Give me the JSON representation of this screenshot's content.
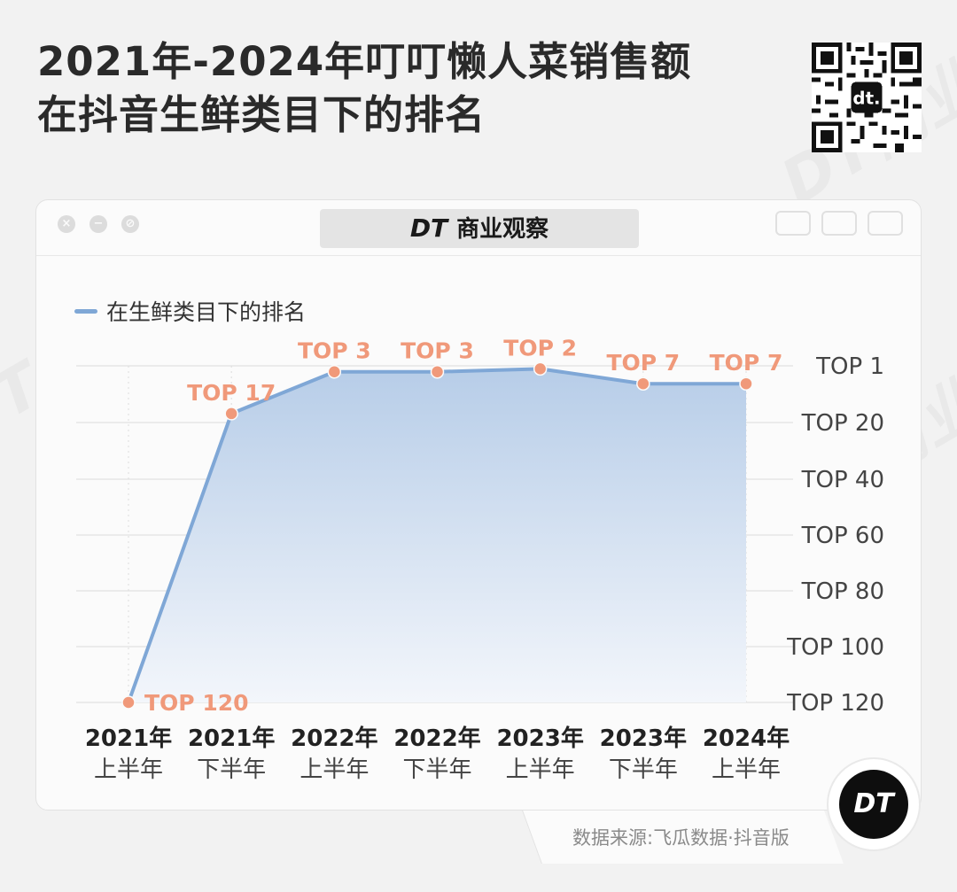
{
  "header": {
    "title_line1": "2021年-2024年叮叮懒人菜销售额",
    "title_line2": "在抖音生鲜类目下的排名"
  },
  "brand": {
    "logo_text": "DT",
    "name": "商业观察",
    "watermark": "DT商业观察",
    "qr_logo_text": "dt."
  },
  "chart_data": {
    "type": "area",
    "title": "2021年-2024年叮叮懒人菜销售额 在抖音生鲜类目下的排名",
    "legend_position": "top-left",
    "grid": true,
    "categories": [
      {
        "year": "2021年",
        "half": "上半年"
      },
      {
        "year": "2021年",
        "half": "下半年"
      },
      {
        "year": "2022年",
        "half": "上半年"
      },
      {
        "year": "2022年",
        "half": "下半年"
      },
      {
        "year": "2023年",
        "half": "上半年"
      },
      {
        "year": "2023年",
        "half": "下半年"
      },
      {
        "year": "2024年",
        "half": "上半年"
      }
    ],
    "series": [
      {
        "name": "在生鲜类目下的排名",
        "values": [
          120,
          17,
          3,
          3,
          2,
          7,
          7
        ],
        "labels": [
          "TOP 120",
          "TOP 17",
          "TOP 3",
          "TOP 3",
          "TOP 2",
          "TOP 7",
          "TOP 7"
        ],
        "color": "#7fa7d6",
        "marker_color": "#f0997a",
        "label_color": "#f0997a"
      }
    ],
    "y_axis": {
      "reversed": true,
      "ticks": [
        1,
        20,
        40,
        60,
        80,
        100,
        120
      ],
      "tick_labels": [
        "TOP 1",
        "TOP 20",
        "TOP 40",
        "TOP 60",
        "TOP 80",
        "TOP 100",
        "TOP 120"
      ],
      "position": "right",
      "ylim": [
        1,
        120
      ]
    }
  },
  "source": {
    "text": "数据来源:飞瓜数据·抖音版"
  }
}
